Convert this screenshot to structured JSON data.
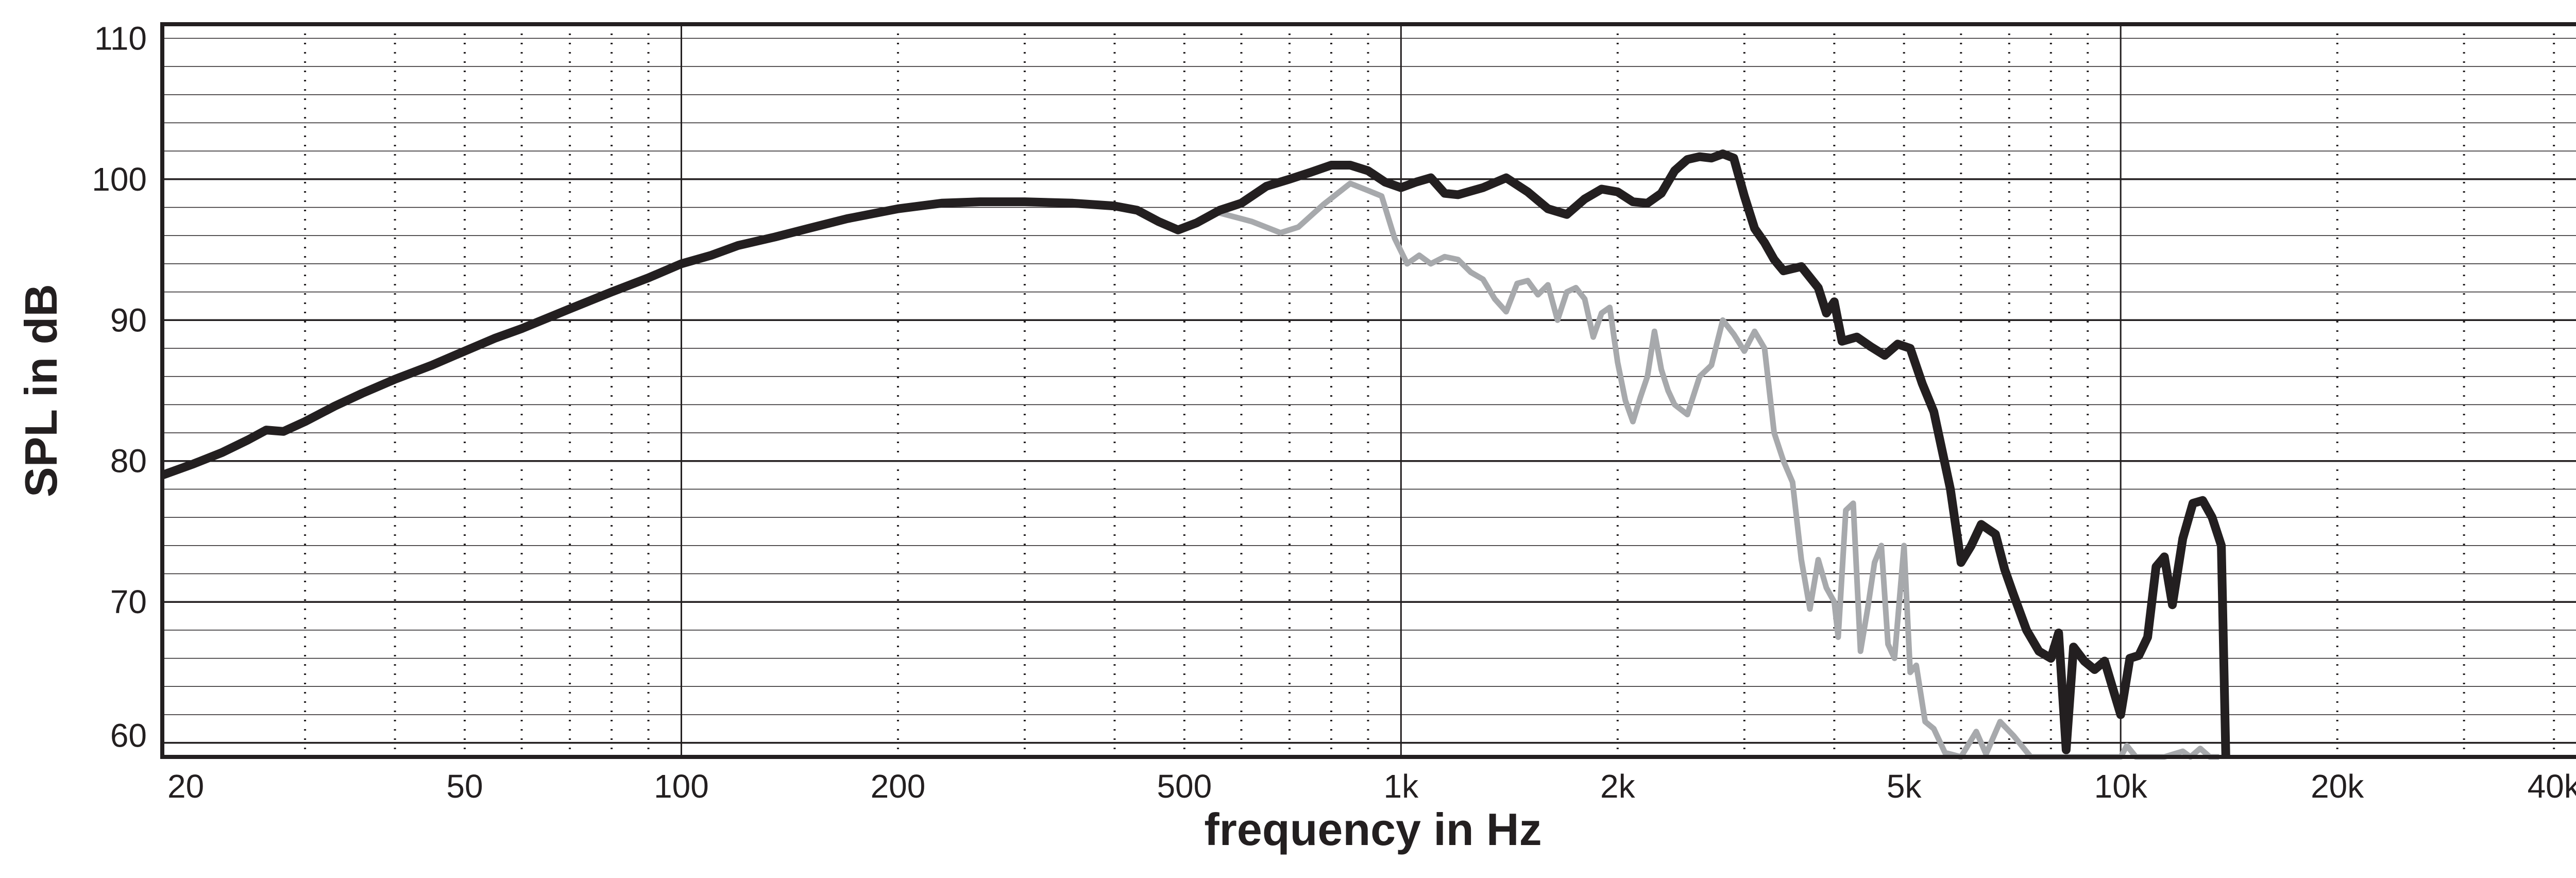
{
  "chart_data": {
    "type": "line",
    "xscale": "log",
    "xlim": [
      19,
      44000
    ],
    "ylim": [
      59,
      111
    ],
    "xlabel": "frequency in Hz",
    "ylabel": "SPL in dB",
    "x_ticks": [
      {
        "value": 20,
        "label": "20"
      },
      {
        "value": 50,
        "label": "50"
      },
      {
        "value": 100,
        "label": "100"
      },
      {
        "value": 200,
        "label": "200"
      },
      {
        "value": 500,
        "label": "500"
      },
      {
        "value": 1000,
        "label": "1k"
      },
      {
        "value": 2000,
        "label": "2k"
      },
      {
        "value": 5000,
        "label": "5k"
      },
      {
        "value": 10000,
        "label": "10k"
      },
      {
        "value": 20000,
        "label": "20k"
      },
      {
        "value": 40000,
        "label": "40k"
      }
    ],
    "y_ticks": [
      {
        "value": 60,
        "label": "60"
      },
      {
        "value": 70,
        "label": "70"
      },
      {
        "value": 80,
        "label": "80"
      },
      {
        "value": 90,
        "label": "90"
      },
      {
        "value": 100,
        "label": "100"
      },
      {
        "value": 110,
        "label": "110"
      }
    ],
    "major_x_gridlines": [
      100,
      1000,
      10000
    ],
    "minor_x_gridlines": [
      30,
      40,
      50,
      60,
      70,
      80,
      90,
      200,
      300,
      400,
      500,
      600,
      700,
      800,
      900,
      2000,
      3000,
      4000,
      5000,
      6000,
      7000,
      8000,
      9000,
      20000,
      30000,
      40000
    ],
    "major_y_gridlines": [
      60,
      70,
      80,
      90,
      100
    ],
    "minor_y_step": 2,
    "grid": true,
    "series": [
      {
        "color": "#231f20",
        "points": [
          [
            19,
            79
          ],
          [
            21,
            79.8
          ],
          [
            23,
            80.6
          ],
          [
            25,
            81.5
          ],
          [
            26.5,
            82.2
          ],
          [
            28,
            82.1
          ],
          [
            30,
            82.8
          ],
          [
            33,
            83.9
          ],
          [
            36,
            84.8
          ],
          [
            40,
            85.8
          ],
          [
            45,
            86.8
          ],
          [
            50,
            87.8
          ],
          [
            55,
            88.7
          ],
          [
            60,
            89.4
          ],
          [
            70,
            90.8
          ],
          [
            80,
            92.0
          ],
          [
            90,
            93.0
          ],
          [
            100,
            94.0
          ],
          [
            110,
            94.6
          ],
          [
            120,
            95.3
          ],
          [
            135,
            95.9
          ],
          [
            150,
            96.5
          ],
          [
            170,
            97.2
          ],
          [
            200,
            97.9
          ],
          [
            230,
            98.3
          ],
          [
            260,
            98.4
          ],
          [
            300,
            98.4
          ],
          [
            350,
            98.3
          ],
          [
            400,
            98.1
          ],
          [
            430,
            97.8
          ],
          [
            460,
            97.0
          ],
          [
            490,
            96.4
          ],
          [
            520,
            96.9
          ],
          [
            560,
            97.8
          ],
          [
            600,
            98.3
          ],
          [
            650,
            99.5
          ],
          [
            700,
            100.0
          ],
          [
            750,
            100.5
          ],
          [
            800,
            101.0
          ],
          [
            850,
            101.0
          ],
          [
            900,
            100.6
          ],
          [
            950,
            99.8
          ],
          [
            1000,
            99.4
          ],
          [
            1050,
            99.8
          ],
          [
            1100,
            100.1
          ],
          [
            1150,
            99.0
          ],
          [
            1200,
            98.9
          ],
          [
            1300,
            99.4
          ],
          [
            1400,
            100.1
          ],
          [
            1500,
            99.1
          ],
          [
            1600,
            97.9
          ],
          [
            1700,
            97.5
          ],
          [
            1800,
            98.6
          ],
          [
            1900,
            99.3
          ],
          [
            2000,
            99.1
          ],
          [
            2100,
            98.4
          ],
          [
            2200,
            98.3
          ],
          [
            2300,
            99.0
          ],
          [
            2400,
            100.6
          ],
          [
            2500,
            101.4
          ],
          [
            2600,
            101.6
          ],
          [
            2700,
            101.5
          ],
          [
            2800,
            101.8
          ],
          [
            2900,
            101.5
          ],
          [
            3000,
            98.8
          ],
          [
            3100,
            96.5
          ],
          [
            3200,
            95.5
          ],
          [
            3300,
            94.3
          ],
          [
            3400,
            93.5
          ],
          [
            3600,
            93.8
          ],
          [
            3800,
            92.3
          ],
          [
            3900,
            90.5
          ],
          [
            4000,
            91.3
          ],
          [
            4100,
            88.5
          ],
          [
            4300,
            88.8
          ],
          [
            4500,
            88.1
          ],
          [
            4700,
            87.5
          ],
          [
            4900,
            88.3
          ],
          [
            5100,
            88.0
          ],
          [
            5300,
            85.5
          ],
          [
            5500,
            83.5
          ],
          [
            5800,
            78.0
          ],
          [
            6000,
            72.8
          ],
          [
            6200,
            74.0
          ],
          [
            6400,
            75.5
          ],
          [
            6700,
            74.8
          ],
          [
            6900,
            72.3
          ],
          [
            7100,
            70.5
          ],
          [
            7400,
            68.0
          ],
          [
            7700,
            66.5
          ],
          [
            8000,
            66.0
          ],
          [
            8200,
            67.8
          ],
          [
            8400,
            59.5
          ],
          [
            8600,
            66.8
          ],
          [
            8900,
            65.8
          ],
          [
            9200,
            65.2
          ],
          [
            9500,
            65.8
          ],
          [
            9800,
            63.5
          ],
          [
            10000,
            62.0
          ],
          [
            10300,
            66.0
          ],
          [
            10600,
            66.2
          ],
          [
            10900,
            67.5
          ],
          [
            11200,
            72.5
          ],
          [
            11500,
            73.2
          ],
          [
            11800,
            69.8
          ],
          [
            12200,
            74.5
          ],
          [
            12600,
            77.0
          ],
          [
            13000,
            77.2
          ],
          [
            13400,
            76.0
          ],
          [
            13800,
            74.0
          ],
          [
            14000,
            59
          ]
        ]
      },
      {
        "color": "#a7a9ac",
        "points": [
          [
            560,
            97.6
          ],
          [
            620,
            97.0
          ],
          [
            680,
            96.2
          ],
          [
            720,
            96.6
          ],
          [
            780,
            98.2
          ],
          [
            850,
            99.7
          ],
          [
            900,
            99.2
          ],
          [
            940,
            98.8
          ],
          [
            980,
            95.8
          ],
          [
            1020,
            94.0
          ],
          [
            1060,
            94.6
          ],
          [
            1100,
            94.0
          ],
          [
            1150,
            94.5
          ],
          [
            1200,
            94.3
          ],
          [
            1250,
            93.4
          ],
          [
            1300,
            92.9
          ],
          [
            1350,
            91.5
          ],
          [
            1400,
            90.6
          ],
          [
            1450,
            92.6
          ],
          [
            1500,
            92.8
          ],
          [
            1550,
            91.8
          ],
          [
            1600,
            92.5
          ],
          [
            1650,
            90.0
          ],
          [
            1700,
            92.0
          ],
          [
            1750,
            92.3
          ],
          [
            1800,
            91.5
          ],
          [
            1850,
            88.8
          ],
          [
            1900,
            90.5
          ],
          [
            1950,
            90.9
          ],
          [
            2000,
            87.0
          ],
          [
            2050,
            84.3
          ],
          [
            2100,
            82.8
          ],
          [
            2150,
            84.5
          ],
          [
            2200,
            86.0
          ],
          [
            2250,
            89.2
          ],
          [
            2300,
            86.5
          ],
          [
            2350,
            85.0
          ],
          [
            2400,
            84.0
          ],
          [
            2500,
            83.3
          ],
          [
            2600,
            86.0
          ],
          [
            2700,
            86.8
          ],
          [
            2800,
            90.0
          ],
          [
            2900,
            89.0
          ],
          [
            3000,
            87.8
          ],
          [
            3100,
            89.2
          ],
          [
            3200,
            88.0
          ],
          [
            3300,
            82.0
          ],
          [
            3400,
            80.0
          ],
          [
            3500,
            78.5
          ],
          [
            3600,
            73.0
          ],
          [
            3700,
            69.5
          ],
          [
            3800,
            73.0
          ],
          [
            3900,
            71.0
          ],
          [
            4000,
            70.0
          ],
          [
            4050,
            67.5
          ],
          [
            4150,
            76.5
          ],
          [
            4250,
            77.0
          ],
          [
            4350,
            66.5
          ],
          [
            4450,
            69.5
          ],
          [
            4550,
            72.8
          ],
          [
            4650,
            74.0
          ],
          [
            4750,
            67.0
          ],
          [
            4850,
            66.0
          ],
          [
            5000,
            74.0
          ],
          [
            5100,
            65.0
          ],
          [
            5200,
            65.5
          ],
          [
            5350,
            61.5
          ],
          [
            5500,
            61.0
          ],
          [
            5700,
            59.3
          ],
          [
            6000,
            59.0
          ],
          [
            6300,
            60.8
          ],
          [
            6500,
            59.2
          ],
          [
            6800,
            61.5
          ],
          [
            7100,
            60.5
          ],
          [
            7500,
            59.0
          ],
          [
            8500,
            59.0
          ],
          [
            9500,
            59.0
          ],
          [
            10000,
            59.0
          ],
          [
            10200,
            59.8
          ],
          [
            10500,
            59.0
          ],
          [
            11500,
            59.0
          ],
          [
            12200,
            59.4
          ],
          [
            12500,
            59.0
          ],
          [
            12900,
            59.6
          ],
          [
            13300,
            59.0
          ],
          [
            13700,
            59.0
          ]
        ]
      }
    ]
  }
}
